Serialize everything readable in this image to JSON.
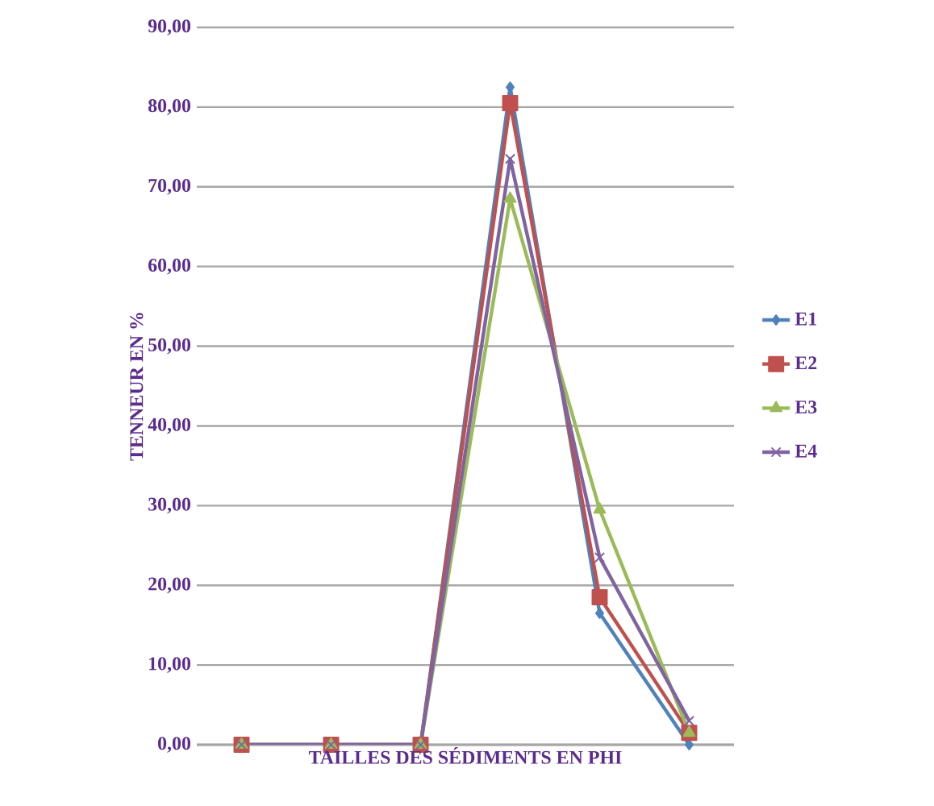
{
  "chart_data": {
    "type": "line",
    "xlabel": "TAILLES DES SÉDIMENTS EN PHI",
    "ylabel": "TENNEUR EN %",
    "categories": [
      null,
      null,
      null,
      null,
      null,
      null
    ],
    "ylim": [
      0,
      90
    ],
    "yticks": [
      {
        "value": 0,
        "label": "0,00"
      },
      {
        "value": 10,
        "label": "10,00"
      },
      {
        "value": 20,
        "label": "20,00"
      },
      {
        "value": 30,
        "label": "30,00"
      },
      {
        "value": 40,
        "label": "40,00"
      },
      {
        "value": 50,
        "label": "50,00"
      },
      {
        "value": 60,
        "label": "60,00"
      },
      {
        "value": 70,
        "label": "70,00"
      },
      {
        "value": 80,
        "label": "80,00"
      },
      {
        "value": 90,
        "label": "90,00"
      }
    ],
    "grid": "y",
    "legend": "right",
    "series": [
      {
        "name": "E1",
        "color": "#4f81bd",
        "marker": "diamond",
        "values": [
          0,
          0,
          0,
          82.5,
          16.5,
          0
        ]
      },
      {
        "name": "E2",
        "color": "#c0504d",
        "marker": "square",
        "values": [
          0,
          0,
          0,
          80.5,
          18.5,
          1.5
        ]
      },
      {
        "name": "E3",
        "color": "#9bbb59",
        "marker": "triangle",
        "values": [
          0,
          0,
          0,
          68.5,
          29.5,
          1.5
        ]
      },
      {
        "name": "E4",
        "color": "#8064a2",
        "marker": "cross",
        "values": [
          0,
          0,
          0,
          73.5,
          23.5,
          3
        ]
      }
    ]
  }
}
